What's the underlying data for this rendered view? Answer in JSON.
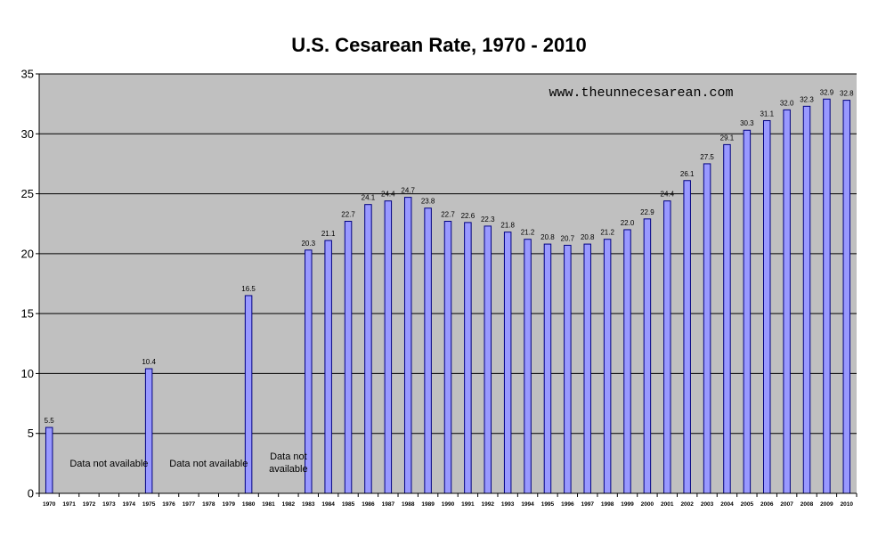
{
  "chart_data": {
    "type": "bar",
    "title": "U.S. Cesarean Rate, 1970 - 2010",
    "xlabel": "",
    "ylabel": "",
    "ylim": [
      0,
      35
    ],
    "yticks": [
      0,
      5,
      10,
      15,
      20,
      25,
      30,
      35
    ],
    "grid": true,
    "categories": [
      "1970",
      "1971",
      "1972",
      "1973",
      "1974",
      "1975",
      "1976",
      "1977",
      "1978",
      "1979",
      "1980",
      "1981",
      "1982",
      "1983",
      "1984",
      "1985",
      "1986",
      "1987",
      "1988",
      "1989",
      "1990",
      "1991",
      "1992",
      "1993",
      "1994",
      "1995",
      "1996",
      "1997",
      "1998",
      "1999",
      "2000",
      "2001",
      "2002",
      "2003",
      "2004",
      "2005",
      "2006",
      "2007",
      "2008",
      "2009",
      "2010"
    ],
    "values": [
      5.5,
      null,
      null,
      null,
      null,
      10.4,
      null,
      null,
      null,
      null,
      16.5,
      null,
      null,
      20.3,
      21.1,
      22.7,
      24.1,
      24.4,
      24.7,
      23.8,
      22.7,
      22.6,
      22.3,
      21.8,
      21.2,
      20.8,
      20.7,
      20.8,
      21.2,
      22.0,
      22.9,
      24.4,
      26.1,
      27.5,
      29.1,
      30.3,
      31.1,
      32.0,
      32.3,
      32.9,
      32.8
    ],
    "value_labels": [
      "5.5",
      "",
      "",
      "",
      "",
      "10.4",
      "",
      "",
      "",
      "",
      "16.5",
      "",
      "",
      "20.3",
      "21.1",
      "22.7",
      "24.1",
      "24.4",
      "24.7",
      "23.8",
      "22.7",
      "22.6",
      "22.3",
      "21.8",
      "21.2",
      "20.8",
      "20.7",
      "20.8",
      "21.2",
      "22.0",
      "22.9",
      "24.4",
      "26.1",
      "27.5",
      "29.1",
      "30.3",
      "31.1",
      "32.0",
      "32.3",
      "32.9",
      "32.8"
    ],
    "annotations": [
      {
        "text_lines": [
          "Data not available"
        ],
        "category_center": 3.0
      },
      {
        "text_lines": [
          "Data not available"
        ],
        "category_center": 8.0
      },
      {
        "text_lines": [
          "Data not",
          "available"
        ],
        "category_center": 12.0
      }
    ],
    "watermark": "www.theunnecesarean.com",
    "colors": {
      "plot_background": "#c0c0c0",
      "bar_fill": "#9999ff",
      "bar_stroke": "#000080",
      "grid": "#000000"
    }
  }
}
